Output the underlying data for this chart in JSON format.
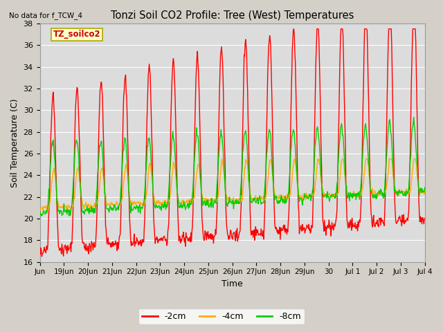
{
  "title": "Tonzi Soil CO2 Profile: Tree (West) Temperatures",
  "no_data_label": "No data for f_TCW_4",
  "site_label": "TZ_soilco2",
  "xlabel": "Time",
  "ylabel": "Soil Temperature (C)",
  "ylim": [
    16,
    38
  ],
  "xlim_days": [
    0,
    16
  ],
  "fig_bg": "#d4d0c8",
  "plot_bg": "#dcdcdc",
  "line_colors": {
    "-2cm": "#ff0000",
    "-4cm": "#ffaa00",
    "-8cm": "#00cc00"
  },
  "legend_labels": [
    "-2cm",
    "-4cm",
    "-8cm"
  ],
  "tick_labels": [
    "Jun",
    "19Jun",
    "20Jun",
    "21Jun",
    "22Jun",
    "23Jun",
    "24Jun",
    "25Jun",
    "26Jun",
    "27Jun",
    "28Jun",
    "29Jun",
    "30",
    "Jul 1",
    "Jul 2",
    "Jul 3",
    "Jul 4"
  ],
  "tick_positions": [
    0,
    1,
    2,
    3,
    4,
    5,
    6,
    7,
    8,
    9,
    10,
    11,
    12,
    13,
    14,
    15,
    16
  ],
  "yticks": [
    16,
    18,
    20,
    22,
    24,
    26,
    28,
    30,
    32,
    34,
    36,
    38
  ]
}
